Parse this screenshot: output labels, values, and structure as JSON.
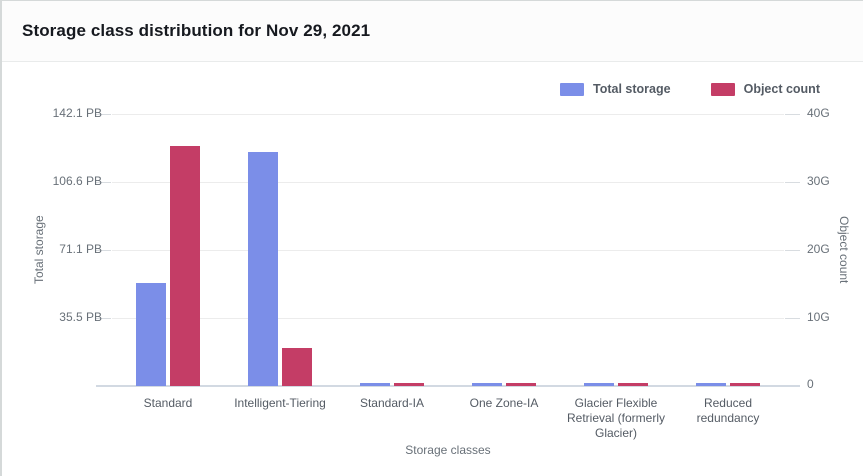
{
  "header": {
    "title": "Storage class distribution for Nov 29, 2021"
  },
  "legend": [
    {
      "label": "Total storage",
      "color": "#7B8EE8"
    },
    {
      "label": "Object count",
      "color": "#C43D66"
    }
  ],
  "chart_data": {
    "type": "bar",
    "title": "Storage class distribution for Nov 29, 2021",
    "categories": [
      "Standard",
      "Intelligent-Tiering",
      "Standard-IA",
      "One Zone-IA",
      "Glacier Flexible Retrieval (formerly Glacier)",
      "Reduced redundancy"
    ],
    "series": [
      {
        "name": "Total storage",
        "unit": "PB",
        "axis": "left",
        "color": "#7B8EE8",
        "values": [
          54.0,
          122.3,
          1.5,
          1.5,
          1.5,
          1.5
        ]
      },
      {
        "name": "Object count",
        "unit": "G",
        "axis": "right",
        "color": "#C43D66",
        "values": [
          35.3,
          5.6,
          0.4,
          0.4,
          0.4,
          0.4
        ]
      }
    ],
    "left_axis": {
      "label": "Total storage",
      "max": 142.1,
      "ticks": [
        "142.1 PB",
        "106.6 PB",
        "71.1 PB",
        "35.5 PB"
      ]
    },
    "right_axis": {
      "label": "Object count",
      "max": 40,
      "ticks": [
        "40G",
        "30G",
        "20G",
        "10G",
        "0"
      ]
    },
    "xlabel": "Storage classes",
    "grid": true,
    "legend_position": "top-right"
  }
}
